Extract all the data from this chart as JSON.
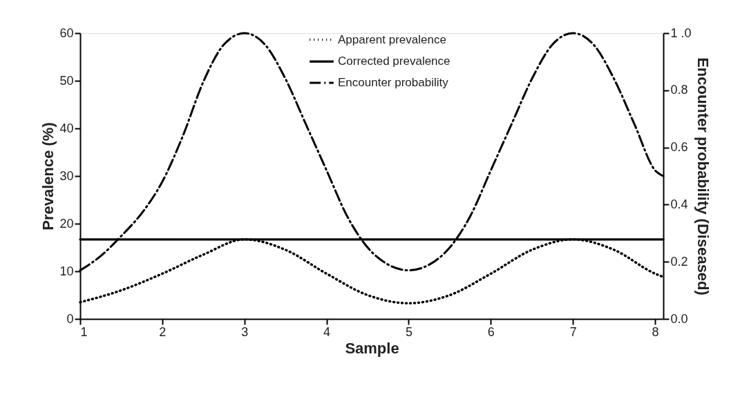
{
  "chart_data": {
    "type": "line",
    "xlabel": "Sample",
    "ylabel": "Prevalence (%)",
    "y2label": "Encounter probability (Diseased)",
    "xlim": [
      1,
      8.1
    ],
    "xticks": [
      1,
      2,
      3,
      4,
      5,
      6,
      7,
      8
    ],
    "ylim": [
      0,
      60
    ],
    "yticks": [
      0,
      10,
      20,
      30,
      40,
      50,
      60
    ],
    "y2lim": [
      0,
      1
    ],
    "y2ticks": [
      {
        "value": 0,
        "label": "0.0"
      },
      {
        "value": 0.2,
        "label": "0.2"
      },
      {
        "value": 0.4,
        "label": "0.4"
      },
      {
        "value": 0.6,
        "label": "0.6"
      },
      {
        "value": 0.8,
        "label": "0.8"
      },
      {
        "value": 1,
        "label": "1 .0"
      }
    ],
    "grid": false,
    "legend": "top",
    "marker": "none",
    "series": [
      {
        "name": "Apparent prevalence",
        "color": "#000000",
        "line_style": "dotted",
        "x": [
          1,
          1.5,
          2,
          2.5,
          3,
          3.5,
          4,
          4.5,
          5,
          5.5,
          6,
          6.5,
          7,
          7.5,
          8,
          8.1
        ],
        "values": [
          3.5,
          6,
          9.5,
          13.5,
          16.7,
          14.5,
          9.5,
          5,
          3.3,
          5,
          9.5,
          14.5,
          16.7,
          14.5,
          9.5,
          8.8
        ]
      },
      {
        "name": "Corrected prevalence",
        "color": "#000000",
        "line_style": "solid",
        "x": [
          1,
          8.1
        ],
        "values": [
          16.7,
          16.7
        ]
      },
      {
        "name": "Encounter probability",
        "color": "#000000",
        "line_style": "dashdot",
        "axis": "y2",
        "x": [
          1,
          1.25,
          1.5,
          1.75,
          2,
          2.25,
          2.5,
          2.75,
          3,
          3.25,
          3.5,
          3.75,
          4,
          4.25,
          4.5,
          4.75,
          5,
          5.25,
          5.5,
          5.75,
          6,
          6.25,
          6.5,
          6.75,
          7,
          7.25,
          7.5,
          7.75,
          8,
          8.1
        ],
        "values": [
          0.17,
          0.22,
          0.29,
          0.37,
          0.48,
          0.64,
          0.83,
          0.96,
          1,
          0.96,
          0.84,
          0.68,
          0.52,
          0.36,
          0.25,
          0.19,
          0.17,
          0.19,
          0.25,
          0.36,
          0.52,
          0.68,
          0.84,
          0.96,
          1,
          0.96,
          0.84,
          0.68,
          0.52,
          0.5
        ]
      }
    ]
  }
}
